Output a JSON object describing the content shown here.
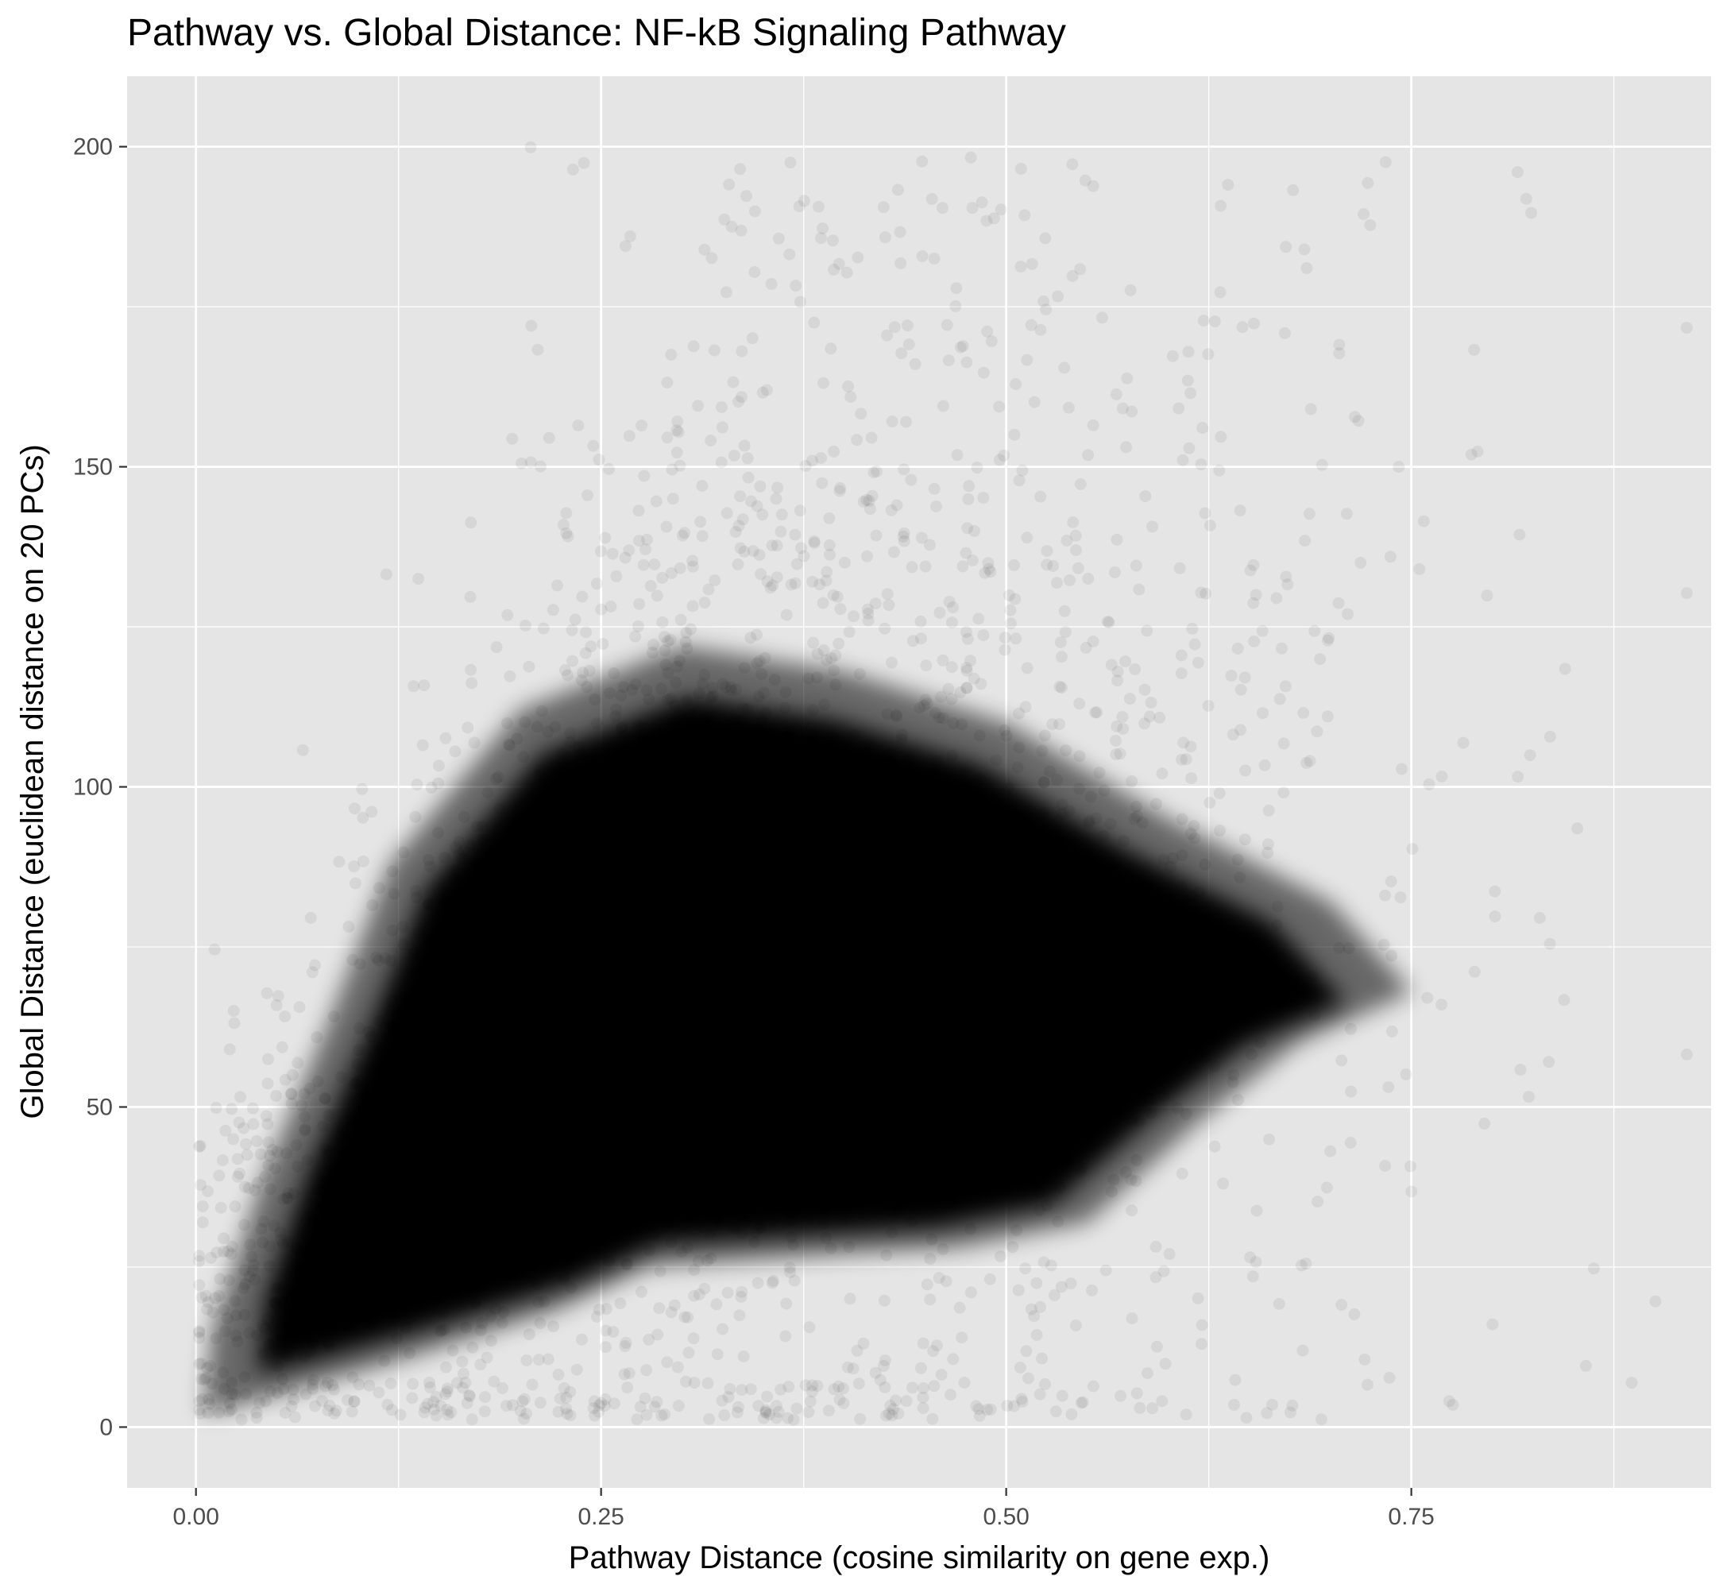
{
  "chart_data": {
    "type": "scatter",
    "title": "Pathway vs. Global Distance: NF-kB Signaling Pathway",
    "xlabel": "Pathway Distance (cosine similarity on gene exp.)",
    "ylabel": "Global Distance (euclidean distance on 20 PCs)",
    "xlim": [
      -0.0425,
      0.935
    ],
    "ylim": [
      -9.5,
      211
    ],
    "x_ticks": [
      0.0,
      0.25,
      0.5,
      0.75
    ],
    "x_tick_labels": [
      "0.00",
      "0.25",
      "0.50",
      "0.75"
    ],
    "y_ticks": [
      0,
      50,
      100,
      150,
      200
    ],
    "y_tick_labels": [
      "0",
      "50",
      "100",
      "150",
      "200"
    ],
    "grid": true,
    "point_color": "#000000",
    "point_alpha": 0.04,
    "panel_background": "#e5e5e5",
    "grid_color": "#ffffff",
    "density_envelope": {
      "description": "approximate outline of the saturated point cloud (x, y in data units)",
      "core": [
        [
          0.005,
          2
        ],
        [
          0.05,
          5
        ],
        [
          0.12,
          10
        ],
        [
          0.22,
          18
        ],
        [
          0.28,
          25
        ],
        [
          0.4,
          27
        ],
        [
          0.47,
          28
        ],
        [
          0.55,
          32
        ],
        [
          0.62,
          48
        ],
        [
          0.68,
          60
        ],
        [
          0.75,
          68
        ],
        [
          0.7,
          82
        ],
        [
          0.6,
          95
        ],
        [
          0.5,
          110
        ],
        [
          0.4,
          118
        ],
        [
          0.3,
          122
        ],
        [
          0.2,
          112
        ],
        [
          0.12,
          88
        ],
        [
          0.08,
          62
        ],
        [
          0.04,
          38
        ],
        [
          0.01,
          15
        ]
      ],
      "sparse_extent": {
        "x": [
          0.0,
          0.92
        ],
        "y": [
          0,
          200
        ]
      }
    }
  }
}
